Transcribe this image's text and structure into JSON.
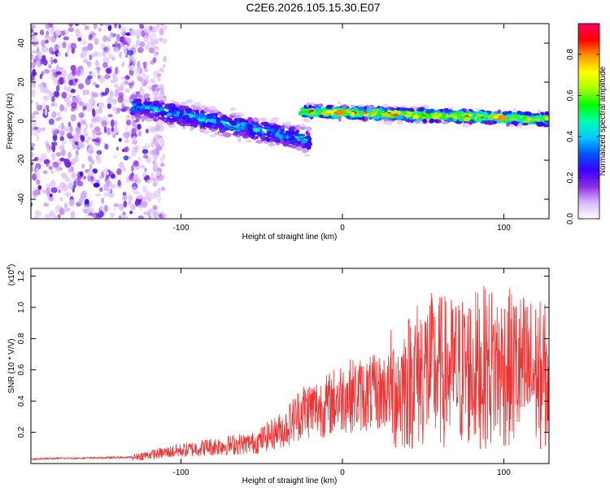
{
  "title": "C2E6.2026.105.15.30.E07",
  "chart_data": [
    {
      "type": "heatmap",
      "name": "spectrogram",
      "xlabel": "Height of straight line (km)",
      "ylabel": "Frequency (Hz)",
      "xlim": [
        -193,
        128
      ],
      "ylim": [
        -50,
        50
      ],
      "xticks": [
        -100,
        0,
        100
      ],
      "xtick_labels": [
        "-100",
        "0",
        "100"
      ],
      "yticks": [
        -40,
        -20,
        0,
        20,
        40
      ],
      "ytick_labels": [
        "-40",
        "-20",
        "0",
        "20",
        "40"
      ],
      "colorbar": {
        "label": "Normalized spectral amplitude",
        "range": [
          0,
          0.95
        ],
        "ticks": [
          0.0,
          0.2,
          0.4,
          0.6,
          0.8
        ],
        "tick_labels": [
          "0.0",
          "0.2",
          "0.4",
          "0.6",
          "0.8"
        ],
        "colors": [
          "#ffffff",
          "#d9b8ff",
          "#8a2be2",
          "#3a00ff",
          "#0055ff",
          "#00ccff",
          "#00ffaa",
          "#00ff00",
          "#aaff00",
          "#ffff00",
          "#ff9900",
          "#ff0000",
          "#ff0066"
        ]
      },
      "features": [
        {
          "region": "noise",
          "x_range": [
            -193,
            -120
          ],
          "freq_range": [
            -50,
            50
          ],
          "amplitude": [
            0.05,
            0.2
          ]
        },
        {
          "region": "band",
          "x_range": [
            -130,
            -20
          ],
          "center_freq": [
            8,
            -10
          ],
          "halfwidth": 7,
          "amplitude": [
            0.2,
            0.45
          ]
        },
        {
          "region": "band",
          "x_range": [
            -25,
            128
          ],
          "center_freq": [
            5,
            1
          ],
          "halfwidth": 4,
          "amplitude": [
            0.5,
            0.9
          ]
        }
      ]
    },
    {
      "type": "line",
      "name": "snr",
      "xlabel": "Height of straight line (km)",
      "ylabel": "SNR (10 * V/V)",
      "exponent_label": "(x10",
      "exponent_sup": "4",
      "xlim": [
        -193,
        128
      ],
      "ylim": [
        0,
        1.25
      ],
      "xticks": [
        -100,
        0,
        100
      ],
      "xtick_labels": [
        "-100",
        "0",
        "100"
      ],
      "yticks": [
        0.2,
        0.4,
        0.6,
        0.8,
        1.0,
        1.2
      ],
      "ytick_labels": [
        "0.2",
        "0.4",
        "0.6",
        "0.8",
        "1.0",
        "1.2"
      ],
      "color": "#ee3333",
      "envelope": [
        {
          "x": -193,
          "y": 0.03
        },
        {
          "x": -130,
          "y": 0.04
        },
        {
          "x": -110,
          "y": 0.07
        },
        {
          "x": -80,
          "y": 0.11
        },
        {
          "x": -55,
          "y": 0.13
        },
        {
          "x": -35,
          "y": 0.23
        },
        {
          "x": -25,
          "y": 0.34
        },
        {
          "x": -10,
          "y": 0.37
        },
        {
          "x": 0,
          "y": 0.43
        },
        {
          "x": 20,
          "y": 0.45
        },
        {
          "x": 35,
          "y": 0.48
        },
        {
          "x": 50,
          "y": 0.6
        },
        {
          "x": 70,
          "y": 0.58
        },
        {
          "x": 90,
          "y": 0.62
        },
        {
          "x": 110,
          "y": 0.6
        },
        {
          "x": 128,
          "y": 0.55
        }
      ]
    }
  ]
}
